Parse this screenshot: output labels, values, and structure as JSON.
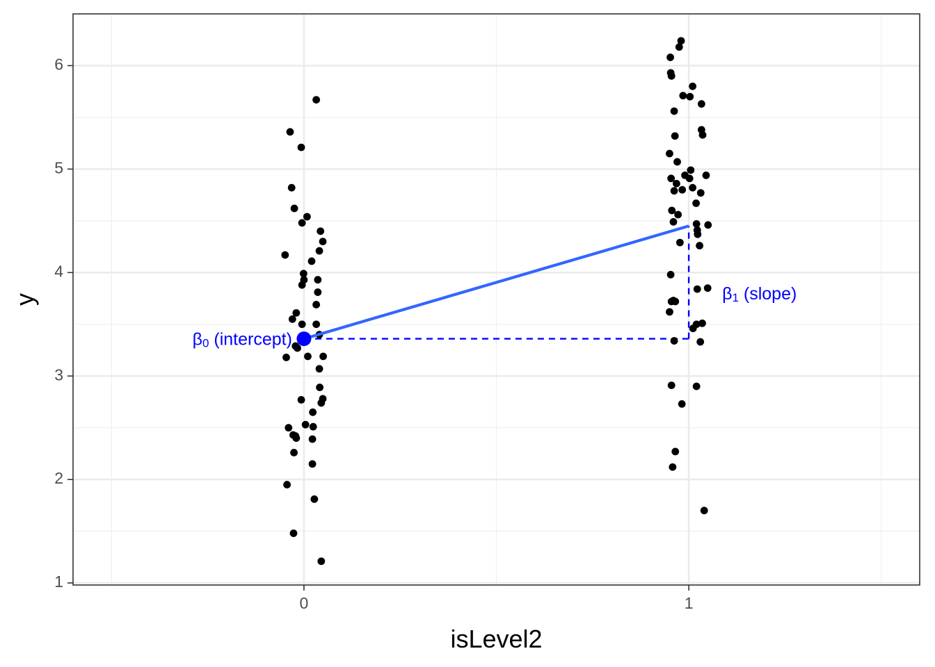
{
  "chart_data": {
    "type": "scatter",
    "xlabel": "isLevel2",
    "ylabel": "y",
    "xlim": [
      -0.6,
      1.6
    ],
    "ylim": [
      0.98,
      6.5
    ],
    "x_ticks": [
      0,
      1
    ],
    "y_ticks": [
      1,
      2,
      3,
      4,
      5,
      6
    ],
    "x_tick_labels": [
      "0",
      "1"
    ],
    "y_tick_labels": [
      "1",
      "2",
      "3",
      "4",
      "5",
      "6"
    ],
    "grid": true,
    "legend": "none",
    "point_color": "#000000",
    "line_color": "#3366ff",
    "annotation_color": "#0000ff",
    "points": [
      {
        "x": 0.032,
        "y": 5.67
      },
      {
        "x": -0.036,
        "y": 5.36
      },
      {
        "x": -0.007,
        "y": 5.21
      },
      {
        "x": -0.032,
        "y": 4.82
      },
      {
        "x": -0.025,
        "y": 4.62
      },
      {
        "x": 0.008,
        "y": 4.54
      },
      {
        "x": -0.005,
        "y": 4.48
      },
      {
        "x": 0.043,
        "y": 4.4
      },
      {
        "x": 0.049,
        "y": 4.3
      },
      {
        "x": 0.04,
        "y": 4.21
      },
      {
        "x": -0.049,
        "y": 4.17
      },
      {
        "x": 0.02,
        "y": 4.11
      },
      {
        "x": -0.001,
        "y": 3.99
      },
      {
        "x": 0.0,
        "y": 3.93
      },
      {
        "x": 0.036,
        "y": 3.93
      },
      {
        "x": -0.005,
        "y": 3.88
      },
      {
        "x": 0.036,
        "y": 3.81
      },
      {
        "x": 0.032,
        "y": 3.69
      },
      {
        "x": -0.02,
        "y": 3.61
      },
      {
        "x": -0.03,
        "y": 3.55
      },
      {
        "x": -0.005,
        "y": 3.5
      },
      {
        "x": 0.032,
        "y": 3.5
      },
      {
        "x": 0.04,
        "y": 3.4
      },
      {
        "x": -0.022,
        "y": 3.29
      },
      {
        "x": -0.017,
        "y": 3.27
      },
      {
        "x": 0.01,
        "y": 3.19
      },
      {
        "x": 0.05,
        "y": 3.19
      },
      {
        "x": -0.046,
        "y": 3.18
      },
      {
        "x": 0.04,
        "y": 3.07
      },
      {
        "x": 0.041,
        "y": 2.89
      },
      {
        "x": -0.007,
        "y": 2.77
      },
      {
        "x": 0.049,
        "y": 2.78
      },
      {
        "x": 0.045,
        "y": 2.74
      },
      {
        "x": 0.023,
        "y": 2.65
      },
      {
        "x": 0.004,
        "y": 2.53
      },
      {
        "x": 0.024,
        "y": 2.51
      },
      {
        "x": -0.04,
        "y": 2.5
      },
      {
        "x": -0.028,
        "y": 2.43
      },
      {
        "x": -0.022,
        "y": 2.42
      },
      {
        "x": -0.02,
        "y": 2.4
      },
      {
        "x": 0.022,
        "y": 2.39
      },
      {
        "x": -0.026,
        "y": 2.26
      },
      {
        "x": 0.022,
        "y": 2.15
      },
      {
        "x": -0.044,
        "y": 1.95
      },
      {
        "x": 0.027,
        "y": 1.81
      },
      {
        "x": -0.027,
        "y": 1.48
      },
      {
        "x": 0.045,
        "y": 1.21
      },
      {
        "x": 0.98,
        "y": 6.24
      },
      {
        "x": 0.975,
        "y": 6.18
      },
      {
        "x": 0.952,
        "y": 6.08
      },
      {
        "x": 0.953,
        "y": 5.93
      },
      {
        "x": 0.955,
        "y": 5.9
      },
      {
        "x": 1.01,
        "y": 5.8
      },
      {
        "x": 0.985,
        "y": 5.71
      },
      {
        "x": 1.003,
        "y": 5.7
      },
      {
        "x": 1.033,
        "y": 5.63
      },
      {
        "x": 0.962,
        "y": 5.56
      },
      {
        "x": 1.033,
        "y": 5.38
      },
      {
        "x": 1.036,
        "y": 5.33
      },
      {
        "x": 0.964,
        "y": 5.32
      },
      {
        "x": 0.95,
        "y": 5.15
      },
      {
        "x": 0.97,
        "y": 5.07
      },
      {
        "x": 1.005,
        "y": 4.99
      },
      {
        "x": 0.99,
        "y": 4.94
      },
      {
        "x": 1.045,
        "y": 4.94
      },
      {
        "x": 0.954,
        "y": 4.91
      },
      {
        "x": 1.002,
        "y": 4.91
      },
      {
        "x": 0.968,
        "y": 4.86
      },
      {
        "x": 1.01,
        "y": 4.82
      },
      {
        "x": 0.983,
        "y": 4.8
      },
      {
        "x": 0.962,
        "y": 4.79
      },
      {
        "x": 1.031,
        "y": 4.77
      },
      {
        "x": 1.019,
        "y": 4.67
      },
      {
        "x": 0.956,
        "y": 4.6
      },
      {
        "x": 0.972,
        "y": 4.56
      },
      {
        "x": 0.96,
        "y": 4.49
      },
      {
        "x": 1.02,
        "y": 4.47
      },
      {
        "x": 1.05,
        "y": 4.46
      },
      {
        "x": 1.022,
        "y": 4.41
      },
      {
        "x": 1.023,
        "y": 4.37
      },
      {
        "x": 0.977,
        "y": 4.29
      },
      {
        "x": 1.028,
        "y": 4.26
      },
      {
        "x": 0.953,
        "y": 3.98
      },
      {
        "x": 1.022,
        "y": 3.84
      },
      {
        "x": 1.049,
        "y": 3.85
      },
      {
        "x": 0.955,
        "y": 3.72
      },
      {
        "x": 0.96,
        "y": 3.73
      },
      {
        "x": 0.965,
        "y": 3.72
      },
      {
        "x": 0.95,
        "y": 3.62
      },
      {
        "x": 1.035,
        "y": 3.51
      },
      {
        "x": 1.02,
        "y": 3.5
      },
      {
        "x": 1.011,
        "y": 3.46
      },
      {
        "x": 0.962,
        "y": 3.34
      },
      {
        "x": 1.03,
        "y": 3.33
      },
      {
        "x": 0.955,
        "y": 2.91
      },
      {
        "x": 1.02,
        "y": 2.9
      },
      {
        "x": 0.982,
        "y": 2.73
      },
      {
        "x": 0.965,
        "y": 2.27
      },
      {
        "x": 0.958,
        "y": 2.12
      },
      {
        "x": 1.04,
        "y": 1.7
      }
    ],
    "regression_line": {
      "x": [
        0,
        1
      ],
      "y": [
        3.36,
        4.45
      ]
    },
    "intercept_point": {
      "x": 0,
      "y": 3.36
    },
    "annotations": {
      "intercept": {
        "prefix": "β",
        "sub": "0",
        "suffix": " (intercept)",
        "x": 0,
        "y": 3.36
      },
      "slope": {
        "prefix": "β",
        "sub": "1",
        "suffix": " (slope)",
        "x": 1,
        "y": 3.8
      }
    }
  }
}
